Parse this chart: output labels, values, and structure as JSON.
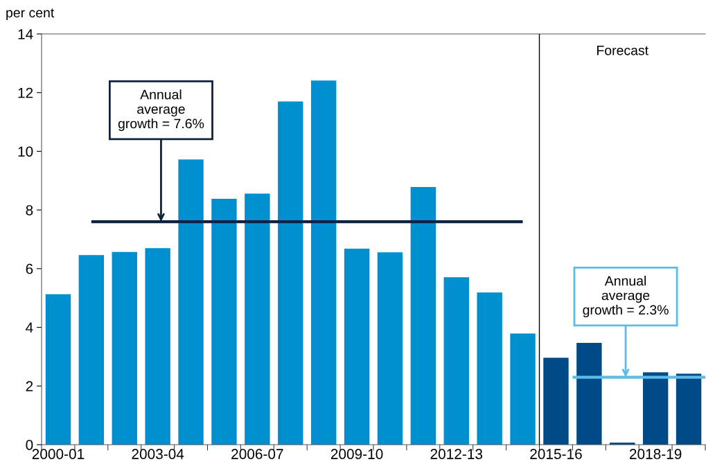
{
  "chart_data": {
    "type": "bar",
    "ylabel": "per cent",
    "categories": [
      "2000-01",
      null,
      null,
      "2003-04",
      null,
      null,
      "2006-07",
      null,
      null,
      "2009-10",
      null,
      null,
      "2012-13",
      null,
      null,
      "2015-16",
      null,
      null,
      "2018-19",
      null
    ],
    "values": [
      5.13,
      6.46,
      6.57,
      6.7,
      9.72,
      8.38,
      8.56,
      11.7,
      12.41,
      6.68,
      6.56,
      8.78,
      5.71,
      5.19,
      3.79,
      2.96,
      3.47,
      0.07,
      2.47,
      2.42
    ],
    "colors": [
      "#0090d0",
      "#0090d0",
      "#0090d0",
      "#0090d0",
      "#0090d0",
      "#0090d0",
      "#0090d0",
      "#0090d0",
      "#0090d0",
      "#0090d0",
      "#0090d0",
      "#0090d0",
      "#0090d0",
      "#0090d0",
      "#0090d0",
      "#004b87",
      "#004b87",
      "#004b87",
      "#004b87",
      "#004b87"
    ],
    "ylim": [
      0,
      14
    ],
    "yticks": [
      0,
      2,
      4,
      6,
      8,
      10,
      12,
      14
    ],
    "grid": false,
    "ref_lines": [
      {
        "axis": "y",
        "value": 7.6,
        "color": "#0d2240"
      },
      {
        "axis": "y",
        "value": 2.3,
        "color": "#5bbce6"
      }
    ],
    "annotations": [
      "Forecast",
      {
        "text": "Annual\naverage\ngrowth = 7.6%",
        "y": 7.6
      },
      {
        "text": "Annual\naverage\ngrowth = 2.3%",
        "y": 2.3
      }
    ]
  }
}
